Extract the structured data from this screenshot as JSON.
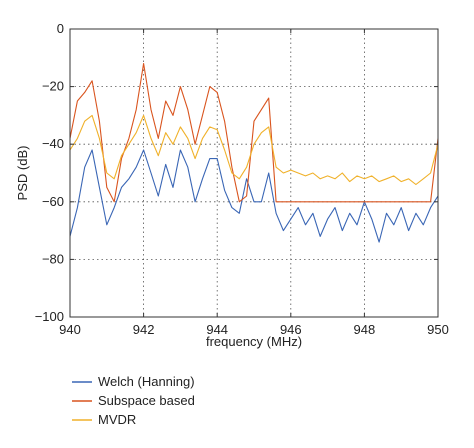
{
  "chart_data": {
    "type": "line",
    "xlabel": "frequency (MHz)",
    "ylabel": "PSD (dB)",
    "xlim": [
      940,
      950
    ],
    "ylim": [
      -100,
      0
    ],
    "xticks": [
      "940",
      "942",
      "944",
      "946",
      "948",
      "950"
    ],
    "yticks": [
      "0",
      "−20",
      "−40",
      "−60",
      "−80",
      "−100"
    ],
    "grid": true,
    "legend_position": "below-left",
    "series": [
      {
        "name": "Welch (Hanning)",
        "color": "#3a66b5",
        "x": [
          940.0,
          940.2,
          940.4,
          940.6,
          940.8,
          941.0,
          941.2,
          941.4,
          941.6,
          941.8,
          942.0,
          942.2,
          942.4,
          942.6,
          942.8,
          943.0,
          943.2,
          943.4,
          943.6,
          943.8,
          944.0,
          944.2,
          944.4,
          944.6,
          944.8,
          945.0,
          945.2,
          945.4,
          945.6,
          945.8,
          946.0,
          946.2,
          946.4,
          946.6,
          946.8,
          947.0,
          947.2,
          947.4,
          947.6,
          947.8,
          948.0,
          948.2,
          948.4,
          948.6,
          948.8,
          949.0,
          949.2,
          949.4,
          949.6,
          949.8,
          950.0
        ],
        "y": [
          -72,
          -62,
          -48,
          -42,
          -55,
          -68,
          -62,
          -55,
          -52,
          -48,
          -42,
          -50,
          -58,
          -47,
          -55,
          -42,
          -48,
          -60,
          -52,
          -45,
          -45,
          -56,
          -62,
          -64,
          -52,
          -60,
          -60,
          -50,
          -64,
          -70,
          -66,
          -62,
          -68,
          -64,
          -72,
          -66,
          -62,
          -70,
          -64,
          -68,
          -60,
          -66,
          -74,
          -64,
          -68,
          -62,
          -70,
          -64,
          -68,
          -62,
          -58
        ]
      },
      {
        "name": "Subspace based",
        "color": "#d9541e",
        "x": [
          940.0,
          940.2,
          940.4,
          940.6,
          940.8,
          941.0,
          941.2,
          941.4,
          941.6,
          941.8,
          942.0,
          942.2,
          942.4,
          942.6,
          942.8,
          943.0,
          943.2,
          943.4,
          943.6,
          943.8,
          944.0,
          944.2,
          944.4,
          944.6,
          944.8,
          945.0,
          945.2,
          945.4,
          945.6,
          945.8,
          946.0,
          946.2,
          946.4,
          946.6,
          946.8,
          947.0,
          947.2,
          947.4,
          947.6,
          947.8,
          948.0,
          948.2,
          948.4,
          948.6,
          948.8,
          949.0,
          949.2,
          949.4,
          949.6,
          949.8,
          950.0
        ],
        "y": [
          -38,
          -25,
          -22,
          -18,
          -32,
          -55,
          -60,
          -45,
          -38,
          -28,
          -12,
          -28,
          -38,
          -25,
          -30,
          -20,
          -28,
          -40,
          -30,
          -20,
          -22,
          -32,
          -48,
          -60,
          -58,
          -32,
          -28,
          -24,
          -60,
          -60,
          -60,
          -60,
          -60,
          -60,
          -60,
          -60,
          -60,
          -60,
          -60,
          -60,
          -60,
          -60,
          -60,
          -60,
          -60,
          -60,
          -60,
          -60,
          -60,
          -60,
          -38
        ]
      },
      {
        "name": "MVDR",
        "color": "#f0b12a",
        "x": [
          940.0,
          940.2,
          940.4,
          940.6,
          940.8,
          941.0,
          941.2,
          941.4,
          941.6,
          941.8,
          942.0,
          942.2,
          942.4,
          942.6,
          942.8,
          943.0,
          943.2,
          943.4,
          943.6,
          943.8,
          944.0,
          944.2,
          944.4,
          944.6,
          944.8,
          945.0,
          945.2,
          945.4,
          945.6,
          945.8,
          946.0,
          946.2,
          946.4,
          946.6,
          946.8,
          947.0,
          947.2,
          947.4,
          947.6,
          947.8,
          948.0,
          948.2,
          948.4,
          948.6,
          948.8,
          949.0,
          949.2,
          949.4,
          949.6,
          949.8,
          950.0
        ],
        "y": [
          -42,
          -38,
          -32,
          -30,
          -38,
          -50,
          -52,
          -44,
          -40,
          -36,
          -30,
          -38,
          -44,
          -36,
          -40,
          -34,
          -38,
          -45,
          -38,
          -34,
          -35,
          -42,
          -50,
          -52,
          -48,
          -40,
          -36,
          -34,
          -48,
          -50,
          -49,
          -50,
          -51,
          -50,
          -52,
          -51,
          -52,
          -50,
          -53,
          -51,
          -52,
          -51,
          -53,
          -52,
          -51,
          -53,
          -52,
          -54,
          -52,
          -50,
          -40
        ]
      }
    ]
  }
}
